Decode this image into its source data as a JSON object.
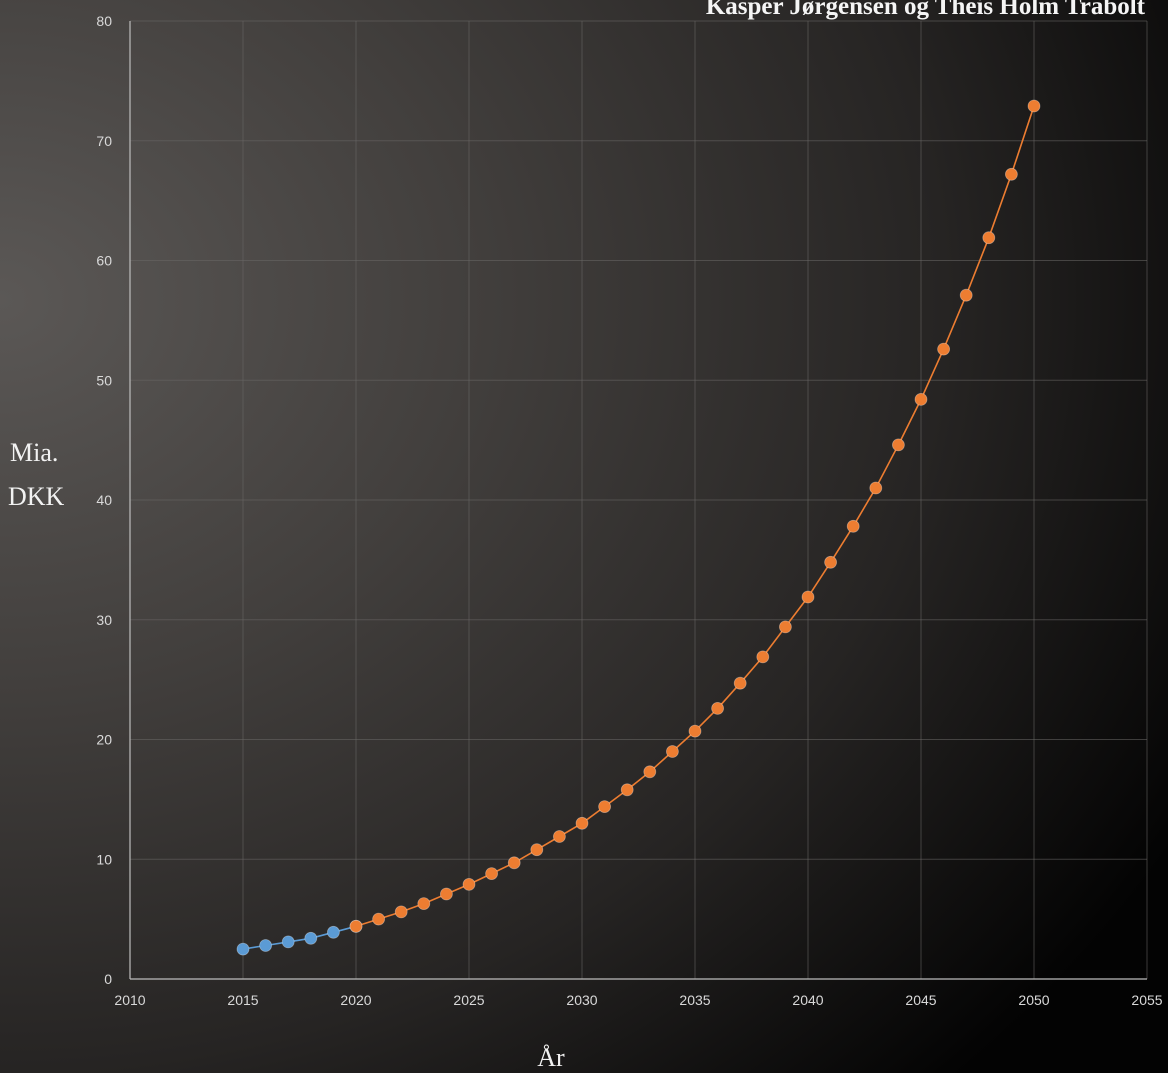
{
  "chart_data": {
    "type": "line",
    "title": "Kasper Jørgensen og Theis Holm Trabolt",
    "xlabel": "År",
    "ylabel": [
      "Mia.",
      "DKK"
    ],
    "xlim": [
      2010,
      2055
    ],
    "ylim": [
      0,
      80
    ],
    "x_ticks": [
      "2010",
      "2015",
      "2020",
      "2025",
      "2030",
      "2035",
      "2040",
      "2045",
      "2050",
      "2055"
    ],
    "y_ticks": [
      "0",
      "10",
      "20",
      "30",
      "40",
      "50",
      "60",
      "70",
      "80"
    ],
    "grid": true,
    "legend": "none",
    "series": [
      {
        "color": "#5b9bd5",
        "x": [
          2015,
          2016,
          2017,
          2018,
          2019,
          2020
        ],
        "values": [
          2.5,
          2.8,
          3.1,
          3.4,
          3.9,
          4.4
        ]
      },
      {
        "color": "#ed7d31",
        "x": [
          2020,
          2021,
          2022,
          2023,
          2024,
          2025,
          2026,
          2027,
          2028,
          2029,
          2030,
          2031,
          2032,
          2033,
          2034,
          2035,
          2036,
          2037,
          2038,
          2039,
          2040,
          2041,
          2042,
          2043,
          2044,
          2045,
          2046,
          2047,
          2048,
          2049,
          2050
        ],
        "values": [
          4.4,
          5.0,
          5.6,
          6.3,
          7.1,
          7.9,
          8.8,
          9.7,
          10.8,
          11.9,
          13.0,
          14.4,
          15.8,
          17.3,
          19.0,
          20.7,
          22.6,
          24.7,
          26.9,
          29.4,
          31.9,
          34.8,
          37.8,
          41.0,
          44.6,
          48.4,
          52.6,
          57.1,
          61.9,
          67.2,
          72.9
        ]
      }
    ]
  }
}
